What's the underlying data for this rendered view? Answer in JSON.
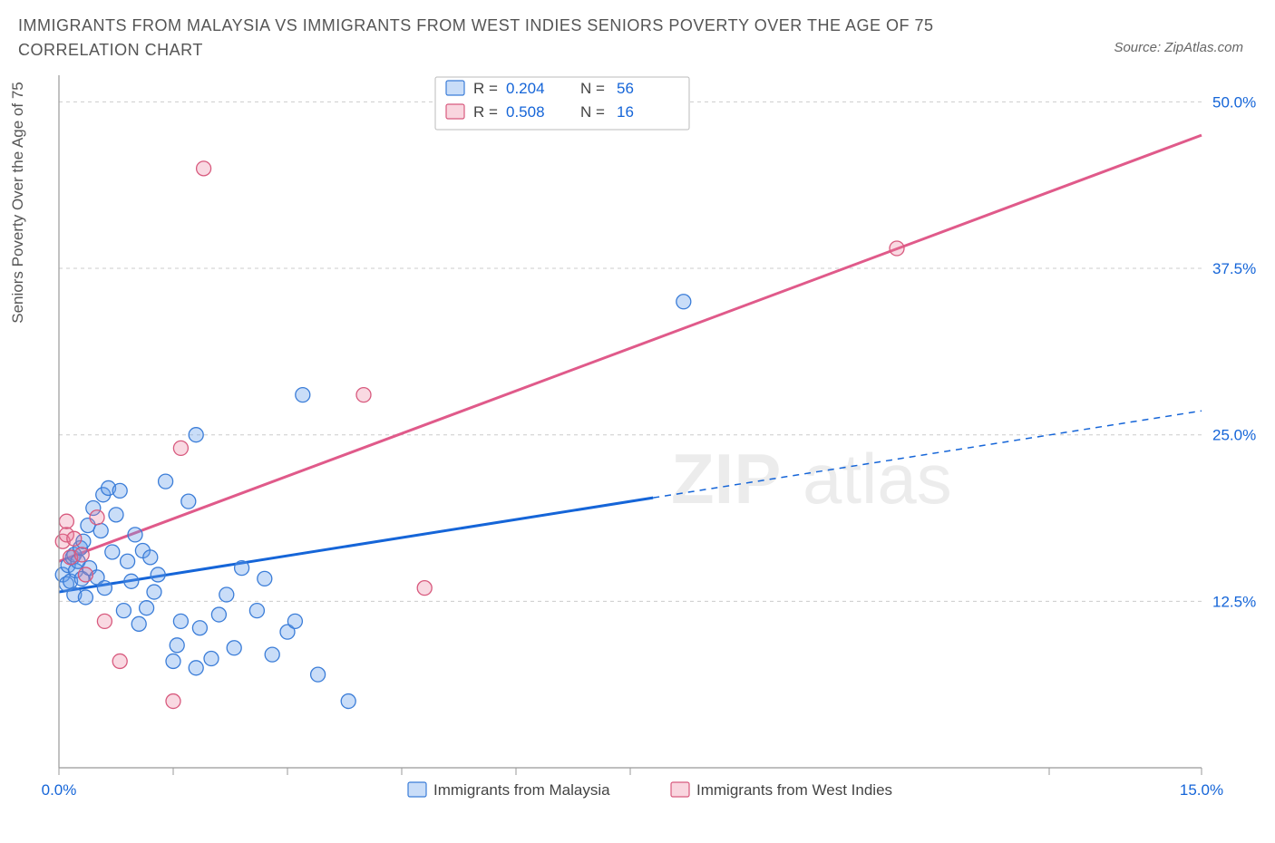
{
  "title": "IMMIGRANTS FROM MALAYSIA VS IMMIGRANTS FROM WEST INDIES SENIORS POVERTY OVER THE AGE OF 75 CORRELATION CHART",
  "source": "Source: ZipAtlas.com",
  "ylabel": "Seniors Poverty Over the Age of 75",
  "watermark_a": "ZIP",
  "watermark_b": "atlas",
  "chart": {
    "type": "scatter",
    "background_color": "#ffffff",
    "grid_color": "#cccccc",
    "axis_color": "#999999",
    "xlim": [
      0,
      15
    ],
    "ylim": [
      0,
      52
    ],
    "xticks": [
      0,
      1.5,
      3.0,
      4.5,
      6.0,
      7.5,
      13.0,
      15.0
    ],
    "xtick_labels": {
      "0": "0.0%",
      "15": "15.0%"
    },
    "yticks": [
      12.5,
      25.0,
      37.5,
      50.0
    ],
    "ytick_labels": [
      "12.5%",
      "25.0%",
      "37.5%",
      "50.0%"
    ],
    "marker_radius": 8,
    "series_a": {
      "name": "Immigrants from Malaysia",
      "color_fill": "rgba(99,158,235,0.35)",
      "color_stroke": "#3b7dd8",
      "R": "0.204",
      "N": "56",
      "trend": {
        "x1": 0,
        "y1": 13.2,
        "x2": 15,
        "y2": 26.8,
        "solid_until_x": 7.8,
        "line_color": "#1565d8"
      },
      "points": [
        [
          0.05,
          14.5
        ],
        [
          0.1,
          13.8
        ],
        [
          0.12,
          15.2
        ],
        [
          0.15,
          14.0
        ],
        [
          0.18,
          15.8
        ],
        [
          0.2,
          16.0
        ],
        [
          0.2,
          13.0
        ],
        [
          0.22,
          14.8
        ],
        [
          0.25,
          15.5
        ],
        [
          0.28,
          16.5
        ],
        [
          0.3,
          14.2
        ],
        [
          0.32,
          17.0
        ],
        [
          0.35,
          12.8
        ],
        [
          0.38,
          18.2
        ],
        [
          0.4,
          15.0
        ],
        [
          0.45,
          19.5
        ],
        [
          0.5,
          14.3
        ],
        [
          0.55,
          17.8
        ],
        [
          0.58,
          20.5
        ],
        [
          0.6,
          13.5
        ],
        [
          0.65,
          21.0
        ],
        [
          0.7,
          16.2
        ],
        [
          0.75,
          19.0
        ],
        [
          0.8,
          20.8
        ],
        [
          0.85,
          11.8
        ],
        [
          0.9,
          15.5
        ],
        [
          0.95,
          14.0
        ],
        [
          1.0,
          17.5
        ],
        [
          1.05,
          10.8
        ],
        [
          1.1,
          16.3
        ],
        [
          1.15,
          12.0
        ],
        [
          1.2,
          15.8
        ],
        [
          1.25,
          13.2
        ],
        [
          1.3,
          14.5
        ],
        [
          1.4,
          21.5
        ],
        [
          1.5,
          8.0
        ],
        [
          1.55,
          9.2
        ],
        [
          1.6,
          11.0
        ],
        [
          1.7,
          20.0
        ],
        [
          1.8,
          7.5
        ],
        [
          1.85,
          10.5
        ],
        [
          2.0,
          8.2
        ],
        [
          2.1,
          11.5
        ],
        [
          2.2,
          13.0
        ],
        [
          2.3,
          9.0
        ],
        [
          2.4,
          15.0
        ],
        [
          2.6,
          11.8
        ],
        [
          2.7,
          14.2
        ],
        [
          2.8,
          8.5
        ],
        [
          3.0,
          10.2
        ],
        [
          3.1,
          11.0
        ],
        [
          3.4,
          7.0
        ],
        [
          1.8,
          25.0
        ],
        [
          3.2,
          28.0
        ],
        [
          3.8,
          5.0
        ],
        [
          8.2,
          35.0
        ]
      ]
    },
    "series_b": {
      "name": "Immigrants from West Indies",
      "color_fill": "rgba(235,120,150,0.28)",
      "color_stroke": "#d85a7e",
      "R": "0.508",
      "N": "16",
      "trend": {
        "x1": 0,
        "y1": 15.5,
        "x2": 15,
        "y2": 47.5,
        "line_color": "#e05a8a"
      },
      "points": [
        [
          0.05,
          17.0
        ],
        [
          0.1,
          17.5
        ],
        [
          0.1,
          18.5
        ],
        [
          0.15,
          15.8
        ],
        [
          0.2,
          17.2
        ],
        [
          0.3,
          16.0
        ],
        [
          0.35,
          14.5
        ],
        [
          0.5,
          18.8
        ],
        [
          0.6,
          11.0
        ],
        [
          0.8,
          8.0
        ],
        [
          1.5,
          5.0
        ],
        [
          1.6,
          24.0
        ],
        [
          1.9,
          45.0
        ],
        [
          4.0,
          28.0
        ],
        [
          4.8,
          13.5
        ],
        [
          11.0,
          39.0
        ]
      ]
    }
  },
  "top_legend": {
    "r_label": "R =",
    "n_label": "N =",
    "rows": [
      {
        "swatch": "a",
        "r": "0.204",
        "n": "56"
      },
      {
        "swatch": "b",
        "r": "0.508",
        "n": "16"
      }
    ]
  },
  "bottom_legend": {
    "a": "Immigrants from Malaysia",
    "b": "Immigrants from West Indies"
  }
}
